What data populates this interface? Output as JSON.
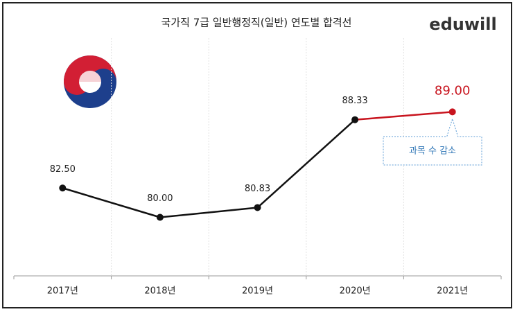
{
  "chart_data": {
    "type": "line",
    "title": "국가직 7급 일반행정직(일반) 연도별 합격선",
    "brand": "eduwill",
    "categories": [
      "2017년",
      "2018년",
      "2019년",
      "2020년",
      "2021년"
    ],
    "values": [
      82.5,
      80,
      80.83,
      88.33,
      89
    ],
    "value_labels": [
      "82.50",
      "80.00",
      "80.83",
      "88.33",
      "89.00"
    ],
    "colors": [
      "#111111",
      "#111111",
      "#111111",
      "#111111",
      "#c8141e"
    ],
    "annotation": "과목 수 감소",
    "ylim": [
      75,
      95
    ],
    "grid": true
  }
}
